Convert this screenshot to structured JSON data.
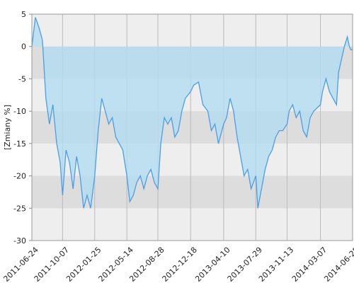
{
  "chart_data": {
    "type": "area",
    "ylabel": "[Zmiany %]",
    "xlim": [
      "2011-06-24",
      "2014-06-25"
    ],
    "xticks": [
      "2011-06-24",
      "2011-10-07",
      "2012-01-25",
      "2012-05-14",
      "2012-08-28",
      "2012-12-18",
      "2013-04-10",
      "2013-07-29",
      "2013-11-13",
      "2014-03-07",
      "2014-06-25"
    ],
    "ylim": [
      -30,
      5
    ],
    "yticks": [
      5,
      0,
      -5,
      -10,
      -15,
      -20,
      -25,
      -30
    ],
    "grid": true,
    "color": "#4a9ee6",
    "fill": "#b3dcf0",
    "x": [
      "2011-06-24",
      "2011-07-06",
      "2011-07-18",
      "2011-07-30",
      "2011-08-11",
      "2011-08-23",
      "2011-09-04",
      "2011-09-17",
      "2011-09-29",
      "2011-10-07",
      "2011-10-19",
      "2011-10-31",
      "2011-11-12",
      "2011-11-24",
      "2011-12-06",
      "2011-12-18",
      "2011-12-30",
      "2012-01-11",
      "2012-01-25",
      "2012-02-06",
      "2012-02-18",
      "2012-03-01",
      "2012-03-13",
      "2012-03-25",
      "2012-04-06",
      "2012-04-18",
      "2012-04-30",
      "2012-05-14",
      "2012-05-24",
      "2012-06-05",
      "2012-06-17",
      "2012-06-29",
      "2012-07-11",
      "2012-07-23",
      "2012-08-04",
      "2012-08-16",
      "2012-08-28",
      "2012-09-07",
      "2012-09-19",
      "2012-10-01",
      "2012-10-13",
      "2012-10-25",
      "2012-11-06",
      "2012-11-18",
      "2012-11-30",
      "2012-12-18",
      "2012-12-28",
      "2013-01-14",
      "2013-01-29",
      "2013-02-15",
      "2013-02-27",
      "2013-03-11",
      "2013-03-23",
      "2013-04-10",
      "2013-04-20",
      "2013-05-02",
      "2013-05-14",
      "2013-05-26",
      "2013-06-07",
      "2013-06-19",
      "2013-07-01",
      "2013-07-13",
      "2013-07-29",
      "2013-08-05",
      "2013-08-30",
      "2013-09-11",
      "2013-09-23",
      "2013-10-05",
      "2013-10-17",
      "2013-10-29",
      "2013-11-13",
      "2013-11-20",
      "2013-12-02",
      "2013-12-14",
      "2013-12-26",
      "2014-01-07",
      "2014-01-19",
      "2014-01-31",
      "2014-02-12",
      "2014-03-07",
      "2014-03-14",
      "2014-03-26",
      "2014-04-07",
      "2014-04-19",
      "2014-05-01",
      "2014-05-08",
      "2014-05-18",
      "2014-05-28",
      "2014-06-07",
      "2014-06-14",
      "2014-06-19",
      "2014-06-25"
    ],
    "values": [
      0,
      4.5,
      3,
      1,
      -8,
      -12,
      -9,
      -15,
      -18,
      -23,
      -16,
      -18,
      -22,
      -17,
      -20,
      -25,
      -23,
      -25,
      -20,
      -13,
      -8,
      -10,
      -12,
      -11,
      -14,
      -15,
      -16,
      -20,
      -24,
      -23,
      -21,
      -20,
      -22,
      -20,
      -19,
      -21,
      -22,
      -15,
      -11,
      -12,
      -11,
      -14,
      -13,
      -10,
      -8,
      -7,
      -6,
      -5.5,
      -9,
      -10,
      -13,
      -12,
      -15,
      -12,
      -11,
      -8,
      -10,
      -14,
      -17,
      -20,
      -19,
      -22,
      -20,
      -25,
      -19,
      -17,
      -16,
      -14,
      -13,
      -13,
      -12,
      -10,
      -9,
      -11,
      -10,
      -13,
      -14,
      -11,
      -10,
      -9,
      -7,
      -5,
      -7,
      -8,
      -9,
      -4,
      -2,
      0,
      1.5,
      0,
      -0.5,
      -0.5
    ]
  }
}
